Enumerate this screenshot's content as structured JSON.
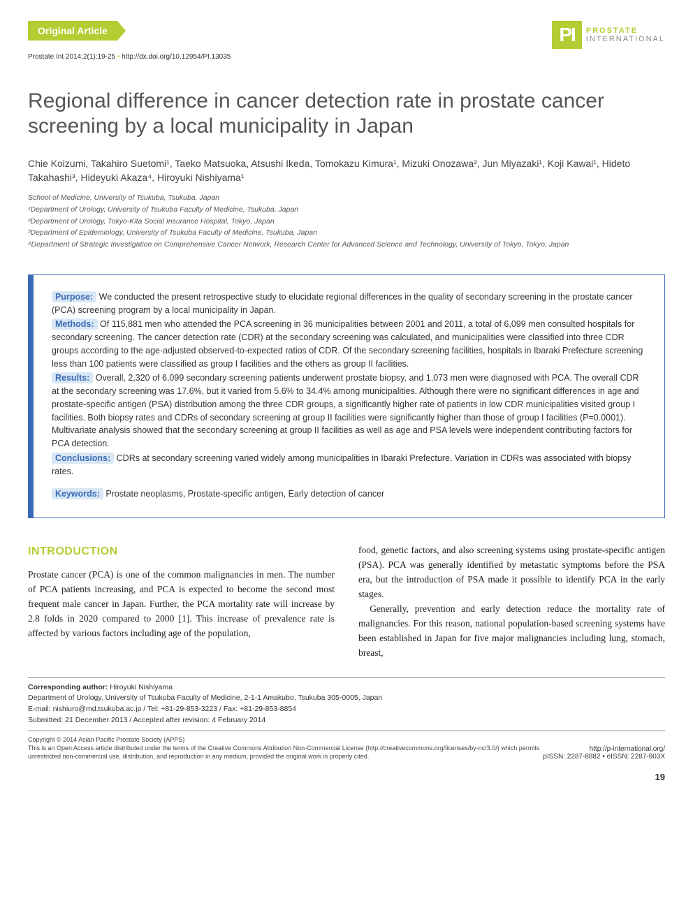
{
  "header": {
    "badge": "Original Article",
    "citation_prefix": "Prostate Int 2014;2(1):19-25",
    "doi": "http://dx.doi.org/10.12954/PI.13035",
    "logo_mark": "PI",
    "logo_line1": "PROSTATE",
    "logo_line2": "INTERNATIONAL"
  },
  "title": "Regional difference in cancer detection rate in prostate cancer screening by a local municipality in Japan",
  "authors": "Chie Koizumi, Takahiro Suetomi¹, Taeko Matsuoka, Atsushi Ikeda, Tomokazu Kimura¹, Mizuki Onozawa², Jun Miyazaki¹, Koji Kawai¹, Hideto Takahashi³, Hideyuki Akaza⁴, Hiroyuki Nishiyama¹",
  "affiliations": [
    "School of Medicine, University of Tsukuba, Tsukuba, Japan",
    "¹Department of Urology, University of Tsukuba Faculty of Medicine, Tsukuba, Japan",
    "²Department of Urology, Tokyo-Kita Social Insurance Hospital, Tokyo, Japan",
    "³Department of Epidemiology, University of Tsukuba Faculty of Medicine, Tsukuba, Japan",
    "⁴Department of Strategic Investigation on Comprehensive Cancer Network, Research Center for Advanced Science and Technology, University of Tokyo, Tokyo, Japan"
  ],
  "abstract": {
    "purpose_label": "Purpose:",
    "purpose_text": " We conducted the present retrospective study to elucidate regional differences in the quality of secondary screening in the prostate cancer (PCA) screening program by a local municipality in Japan.",
    "methods_label": "Methods:",
    "methods_text": " Of 115,881 men who attended the PCA screening in 36 municipalities between 2001 and 2011, a total of 6,099 men consulted hospitals for secondary screening. The cancer detection rate (CDR) at the secondary screening was calculated, and municipalities were classified into three CDR groups according to the age-adjusted observed-to-expected ratios of CDR. Of the secondary screening facilities, hospitals in Ibaraki Prefecture screening less than 100 patients were classified as group I facilities and the others as group II facilities.",
    "results_label": "Results:",
    "results_text": " Overall, 2,320 of 6,099 secondary screening patients underwent prostate biopsy, and 1,073 men were diagnosed with PCA. The overall CDR at the secondary screening was 17.6%, but it varied from 5.6% to 34.4% among municipalities. Although there were no significant differences in age and prostate-specific antigen (PSA) distribution among the three CDR groups, a significantly higher rate of patients in low CDR municipalities visited group I facilities. Both biopsy rates and CDRs of secondary screening at group II facilities were significantly higher than those of group I facilities (P=0.0001). Multivariate analysis showed that the secondary screening at group II facilities as well as age and PSA levels were independent contributing factors for PCA detection.",
    "conclusions_label": "Conclusions:",
    "conclusions_text": " CDRs at secondary screening varied widely among municipalities in Ibaraki Prefecture. Variation in CDRs was associated with biopsy rates.",
    "keywords_label": "Keywords:",
    "keywords_text": " Prostate neoplasms, Prostate-specific antigen, Early detection of cancer"
  },
  "intro": {
    "heading": "INTRODUCTION",
    "col1": "Prostate cancer (PCA) is one of the common malignancies in men. The number of PCA patients increasing, and PCA is expected to become the second most frequent male cancer in Japan. Further, the PCA mortality rate will increase by 2.8 folds in 2020 compared to 2000 [1]. This increase of prevalence rate is affected by various factors including age of the population,",
    "col2_p1": "food, genetic factors, and also screening systems using prostate-specific antigen (PSA). PCA was generally identified by metastatic symptoms before the PSA era, but the introduction of PSA made it possible to identify PCA in the early stages.",
    "col2_p2": "Generally, prevention and early detection reduce the mortality rate of malignancies. For this reason, national population-based screening systems have been established in Japan for five major malignancies including lung, stomach, breast,"
  },
  "corresponding": {
    "label": "Corresponding author:",
    "name": " Hiroyuki Nishiyama",
    "line1": "Department of Urology, University of Tsukuba Faculty of Medicine, 2-1-1 Amakubo, Tsukuba 305-0005, Japan",
    "line2": "E-mail: nishiuro@md.tsukuba.ac.jp / Tel: +81-29-853-3223 / Fax: +81-29-853-8854",
    "line3": "Submitted: 21 December 2013 / Accepted after revision: 4 February 2014"
  },
  "footer": {
    "copyright": "Copyright © 2014 Asian Pacific Prostate Society (APPS)",
    "license": "This is an Open Access article distributed under the terms of the Creative Commons Attribution Non-Commercial License (http://creativecommons.org/licenses/by-nc/3.0/) which permits unrestricted non-commercial use, distribution, and reproduction in any medium, provided the original work is properly cited.",
    "url": "http://p-international.org/",
    "issn": "pISSN: 2287-8882 • eISSN: 2287-903X",
    "page": "19"
  },
  "colors": {
    "accent_green": "#b4cd32",
    "accent_blue": "#3a6ab5",
    "label_bg": "#d9e7f5"
  }
}
